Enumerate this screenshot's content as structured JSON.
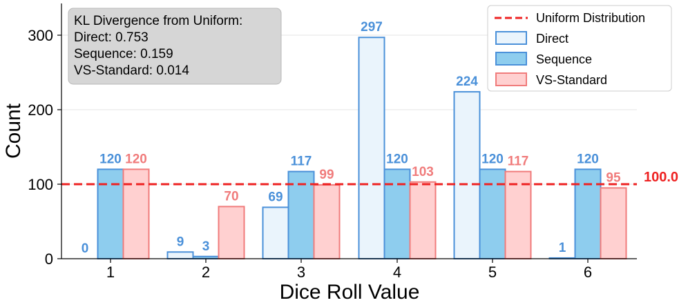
{
  "chart_data": {
    "type": "bar",
    "title": "",
    "xlabel": "Dice Roll Value",
    "ylabel": "Count",
    "categories": [
      "1",
      "2",
      "3",
      "4",
      "5",
      "6"
    ],
    "ylim": [
      0,
      340
    ],
    "yticks": [
      0,
      100,
      200,
      300
    ],
    "grid": "horizontal",
    "series": [
      {
        "name": "Direct",
        "values": [
          0,
          9,
          69,
          297,
          224,
          1
        ],
        "fill": "#eaf4fc",
        "stroke": "#4a90d9",
        "label_color": "#4a90d9"
      },
      {
        "name": "Sequence",
        "values": [
          120,
          3,
          117,
          120,
          120,
          120
        ],
        "fill": "#8ecdee",
        "stroke": "#4a90d9",
        "label_color": "#4a90d9"
      },
      {
        "name": "VS-Standard",
        "values": [
          120,
          70,
          99,
          103,
          117,
          95
        ],
        "fill": "#ffd0d0",
        "stroke": "#f07b7b",
        "label_color": "#f07b7b"
      }
    ],
    "reference_line": {
      "name": "Uniform Distribution",
      "value": 100,
      "label": "100.0",
      "color": "#ee2222",
      "style": "dashed"
    },
    "legend_position": "top-right",
    "annotation": {
      "lines": [
        "KL Divergence from Uniform:",
        "Direct: 0.753",
        "Sequence: 0.159",
        "VS-Standard: 0.014"
      ],
      "position": "top-left"
    }
  }
}
